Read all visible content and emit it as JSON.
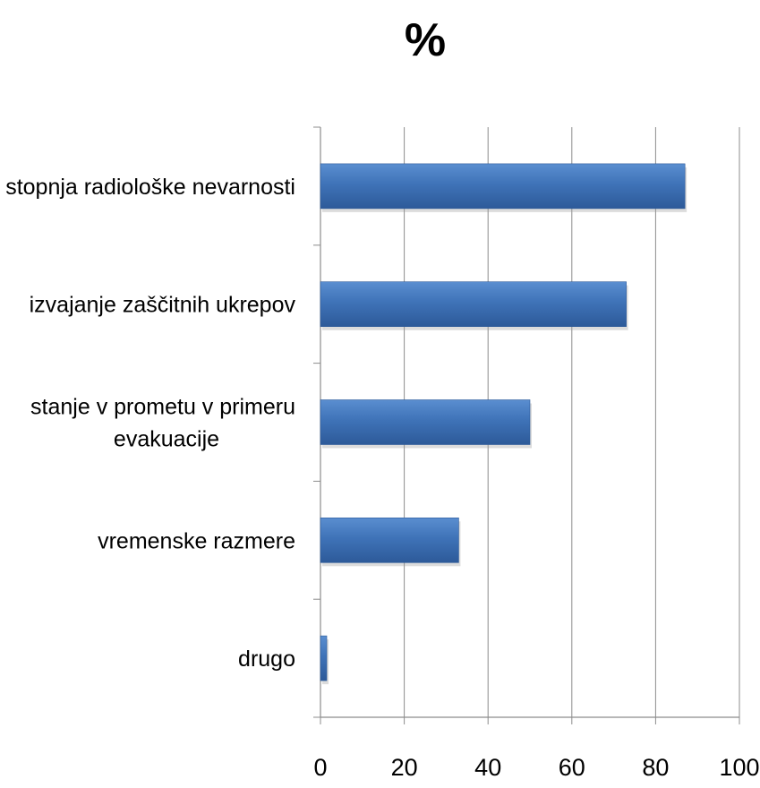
{
  "chart_data": {
    "type": "bar",
    "orientation": "horizontal",
    "title": "%",
    "xlabel": "",
    "ylabel": "",
    "categories": [
      [
        "stopnja radiološke nevarnosti"
      ],
      [
        "izvajanje zaščitnih ukrepov"
      ],
      [
        "stanje v prometu v primeru",
        "evakuacije"
      ],
      [
        "vremenske razmere"
      ],
      [
        "drugo"
      ]
    ],
    "values": [
      87,
      73,
      50,
      33,
      1.5
    ],
    "xlim": [
      0,
      100
    ],
    "xticks": [
      "0",
      "20",
      "40",
      "60",
      "80",
      "100"
    ],
    "grid": "vertical",
    "legend": "none",
    "colors": {
      "bar": "#3f73b8",
      "bar_dark": "#2d5a99",
      "bar_light": "#5a8ed0",
      "grid": "#8c8c8c",
      "axis": "#8c8c8c"
    }
  }
}
